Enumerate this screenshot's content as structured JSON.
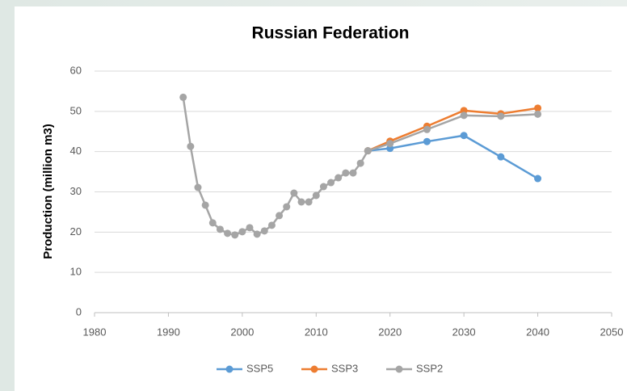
{
  "chart_data": {
    "type": "line",
    "title": "Russian Federation",
    "y_label": "Production (million m3)",
    "xlim": [
      1980,
      2050
    ],
    "xticks": [
      1980,
      1990,
      2000,
      2010,
      2020,
      2030,
      2040,
      2050
    ],
    "ylim": [
      0,
      60
    ],
    "yticks": [
      0,
      10,
      20,
      30,
      40,
      50,
      60
    ],
    "grid": true,
    "legend": "bottom",
    "series": [
      {
        "name": "SSP5",
        "color": "#5b9bd5",
        "x": [
          2017,
          2020,
          2025,
          2030,
          2035,
          2040
        ],
        "values": [
          40.2,
          40.8,
          42.5,
          44,
          38.7,
          33.3
        ]
      },
      {
        "name": "SSP3",
        "color": "#ed7d31",
        "x": [
          2017,
          2020,
          2025,
          2030,
          2035,
          2040
        ],
        "values": [
          40.2,
          42.6,
          46.3,
          50.2,
          49.4,
          50.8
        ]
      },
      {
        "name": "SSP2",
        "color": "#a5a5a5",
        "x": [
          1992,
          1993,
          1994,
          1995,
          1996,
          1997,
          1998,
          1999,
          2000,
          2001,
          2002,
          2003,
          2004,
          2005,
          2006,
          2007,
          2008,
          2009,
          2010,
          2011,
          2012,
          2013,
          2014,
          2015,
          2016,
          2017,
          2020,
          2025,
          2030,
          2035,
          2040
        ],
        "values": [
          53.5,
          41.3,
          31.1,
          26.7,
          22.3,
          20.7,
          19.7,
          19.3,
          20.1,
          21.1,
          19.5,
          20.3,
          21.7,
          24.1,
          26.3,
          29.7,
          27.5,
          27.5,
          29.1,
          31.3,
          32.3,
          33.5,
          34.7,
          34.7,
          37.1,
          40.2,
          42,
          45.5,
          49,
          48.8,
          49.3
        ]
      }
    ]
  }
}
